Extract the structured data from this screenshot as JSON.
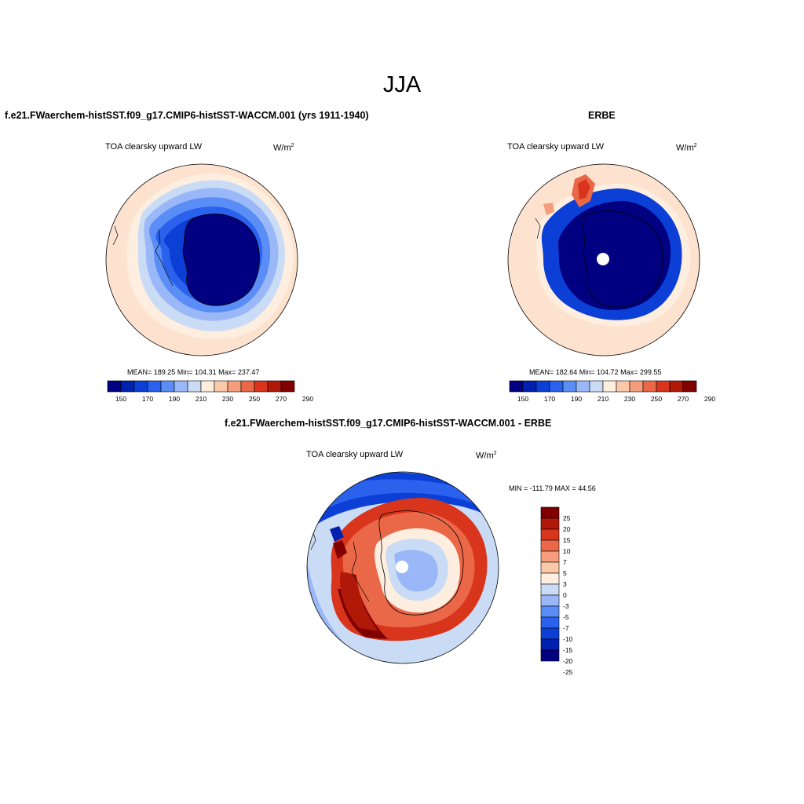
{
  "figure": {
    "title": "JJA"
  },
  "colors": {
    "abs_scale": [
      "#000080",
      "#0020b0",
      "#0b3fd6",
      "#2a62ee",
      "#5a8df5",
      "#9ab8f7",
      "#cadbf6",
      "#fdeee0",
      "#fbc9a8",
      "#f59d7c",
      "#ea6748",
      "#d8351c",
      "#b01808",
      "#800000"
    ],
    "diff_scale": [
      "#000080",
      "#0020b0",
      "#0b3fd6",
      "#2a62ee",
      "#5a8df5",
      "#9ab8f7",
      "#cadbf6",
      "#fdeee0",
      "#fbc9a8",
      "#f59d7c",
      "#ea6748",
      "#d8351c",
      "#b01808",
      "#800000"
    ]
  },
  "panels": [
    {
      "id": "model",
      "title": "f.e21.FWaerchem-histSST.f09_g17.CMIP6-histSST-WACCM.001 (yrs 1911-1940)",
      "left_label": "TOA clearsky upward LW",
      "units": "W/m",
      "units_sup": "2",
      "stats": "MEAN= 189.25  Min= 104.31  Max= 237.47",
      "colorbar_labels": [
        "150",
        "170",
        "190",
        "210",
        "230",
        "250",
        "270",
        "290"
      ]
    },
    {
      "id": "obs",
      "title": "ERBE",
      "left_label": "TOA clearsky upward LW",
      "units": "W/m",
      "units_sup": "2",
      "stats": "MEAN= 182.64  Min= 104.72  Max= 299.55",
      "colorbar_labels": [
        "150",
        "170",
        "190",
        "210",
        "230",
        "250",
        "270",
        "290"
      ]
    },
    {
      "id": "diff",
      "title": "f.e21.FWaerchem-histSST.f09_g17.CMIP6-histSST-WACCM.001 - ERBE",
      "left_label": "TOA clearsky upward LW",
      "units": "W/m",
      "units_sup": "2",
      "stats": "MIN = -111.79 MAX =  44.56",
      "colorbar_labels": [
        "25",
        "20",
        "15",
        "10",
        "7",
        "5",
        "3",
        "0",
        "-3",
        "-5",
        "-7",
        "-10",
        "-15",
        "-20",
        "-25"
      ]
    }
  ]
}
